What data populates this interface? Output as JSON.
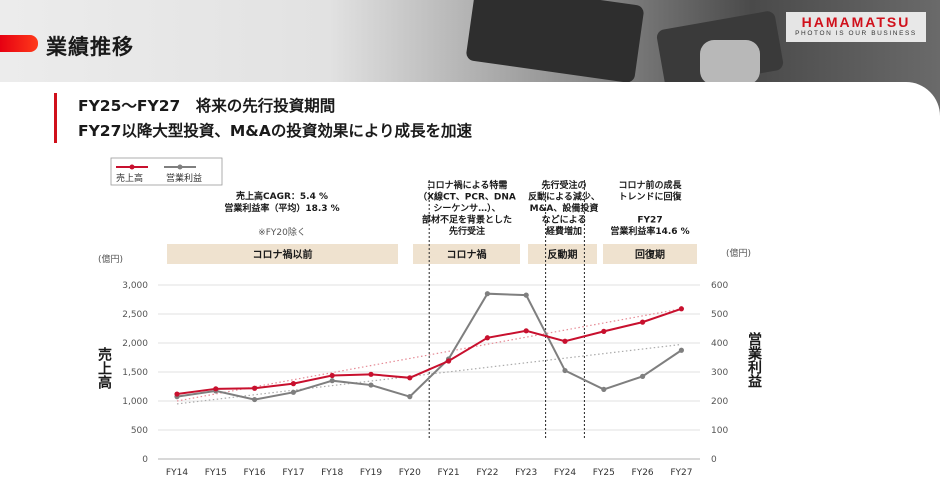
{
  "page_title": "業績推移",
  "logo": {
    "name": "HAMAMATSU",
    "tagline": "PHOTON IS OUR BUSINESS"
  },
  "heading": {
    "line1": "FY25～FY27　将来の先行投資期間",
    "line2": "FY27以降大型投資、M&Aの投資効果により成長を加速"
  },
  "colors": {
    "sales": "#c8102e",
    "profit": "#7f7f7f",
    "accent": "#e60012",
    "band": "#efe2cf"
  },
  "chart_data": {
    "type": "line",
    "categories": [
      "FY14",
      "FY15",
      "FY16",
      "FY17",
      "FY18",
      "FY19",
      "FY20",
      "FY21",
      "FY22",
      "FY23",
      "FY24",
      "FY25",
      "FY26",
      "FY27"
    ],
    "series": [
      {
        "name": "売上高",
        "axis": "left",
        "values": [
          1120,
          1210,
          1220,
          1300,
          1440,
          1460,
          1400,
          1690,
          2090,
          2210,
          2030,
          2200,
          2360,
          2590
        ]
      },
      {
        "name": "営業利益",
        "axis": "right",
        "values": [
          215,
          235,
          205,
          230,
          270,
          255,
          215,
          345,
          570,
          565,
          305,
          240,
          285,
          375
        ]
      }
    ],
    "y_left": {
      "label": "売上高",
      "unit": "(億円)",
      "ylim": [
        0,
        3000
      ],
      "ticks": [
        "0",
        "500",
        "1,000",
        "1,500",
        "2,000",
        "2,500",
        "3,000"
      ]
    },
    "y_right": {
      "label": "営業利益",
      "unit": "(億円)",
      "ylim": [
        0,
        600
      ],
      "ticks": [
        "0",
        "100",
        "200",
        "300",
        "400",
        "500",
        "600"
      ]
    },
    "trendlines": [
      {
        "series": "売上高",
        "start": 1000,
        "end": 2590
      },
      {
        "series": "営業利益",
        "start": 190,
        "end": 395
      }
    ],
    "periods": [
      {
        "label": "コロナ禍以前",
        "from": 0,
        "to": 6
      },
      {
        "label": "コロナ禍",
        "from": 6,
        "to": 9
      },
      {
        "label": "反動期",
        "from": 9,
        "to": 11
      },
      {
        "label": "回復期",
        "from": 11,
        "to": 13
      }
    ],
    "annotations": [
      {
        "lines": [
          "売上高CAGR：5.4 %",
          "営業利益率（平均）18.3 %",
          "",
          "※FY20除く"
        ]
      },
      {
        "lines": [
          "コロナ禍による特需",
          "（X線CT、PCR、DNA",
          "シーケンサ…）、",
          "部材不足を背景とした",
          "先行受注"
        ]
      },
      {
        "lines": [
          "先行受注の",
          "反動による減少、",
          "M&A、設備投資",
          "などによる",
          "経費増加"
        ]
      },
      {
        "lines": [
          "コロナ前の成長",
          "トレンドに回復",
          "",
          "FY27",
          "営業利益率14.6 %"
        ]
      }
    ],
    "legend": [
      "売上高",
      "営業利益"
    ]
  }
}
